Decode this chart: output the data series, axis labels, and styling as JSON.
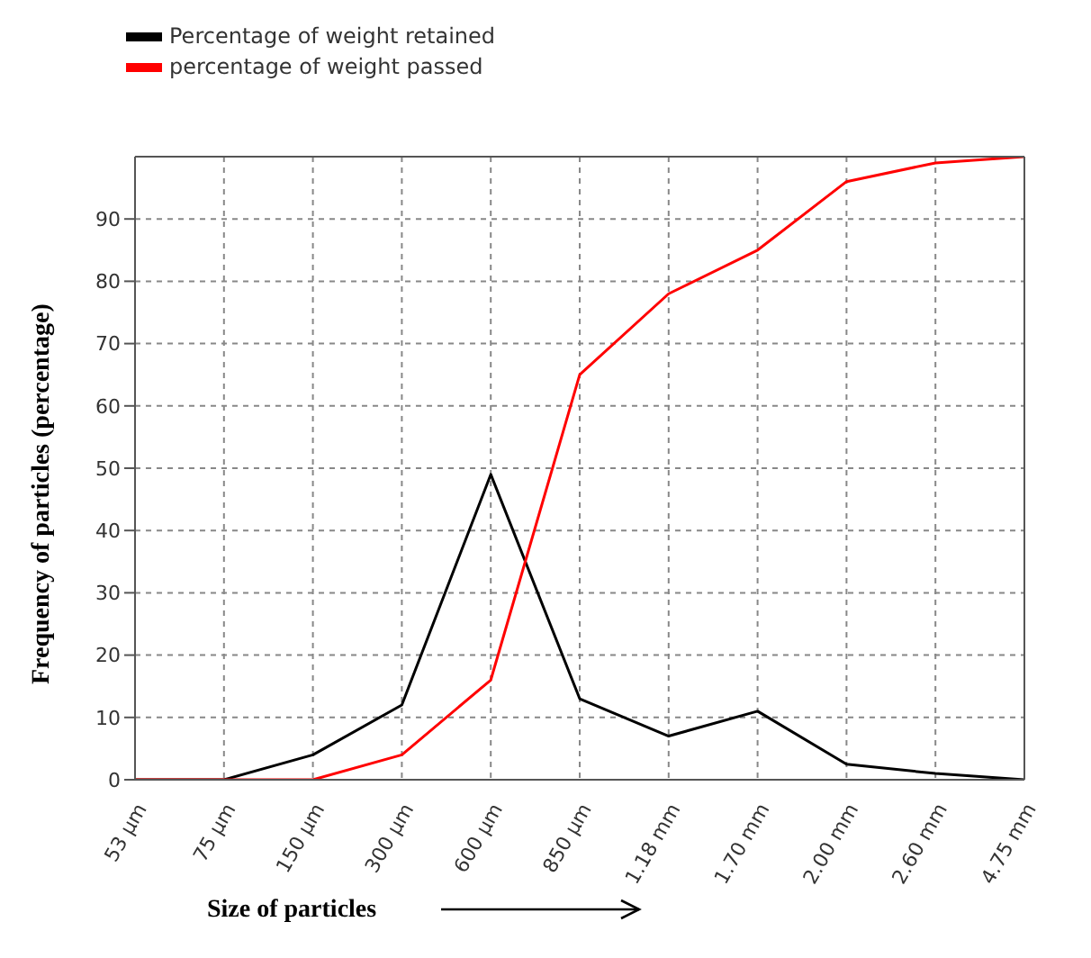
{
  "chart_data": {
    "type": "line",
    "xlabel": "Size of particles",
    "ylabel": "Frequency of particles (percentage)",
    "categories": [
      "53 µm",
      "75 µm",
      "150 µm",
      "300 µm",
      "600 µm",
      "850 µm",
      "1.18 mm",
      "1.70 mm",
      "2.00 mm",
      "2.60 mm",
      "4.75 mm"
    ],
    "series": [
      {
        "name": "Percentage of weight retained",
        "color": "#000000",
        "values": [
          0,
          0,
          4,
          12,
          49,
          13,
          7,
          11,
          2.5,
          1,
          0
        ]
      },
      {
        "name": "percentage of weight passed",
        "color": "#ff0000",
        "values": [
          0,
          0,
          0,
          4,
          16,
          65,
          78,
          85,
          96,
          99,
          100
        ]
      }
    ],
    "ylim": [
      0,
      100
    ],
    "yticks": [
      0,
      10,
      20,
      30,
      40,
      50,
      60,
      70,
      80,
      90
    ],
    "grid": true,
    "legend": "top left",
    "marker": "none",
    "line_style": "solid"
  }
}
